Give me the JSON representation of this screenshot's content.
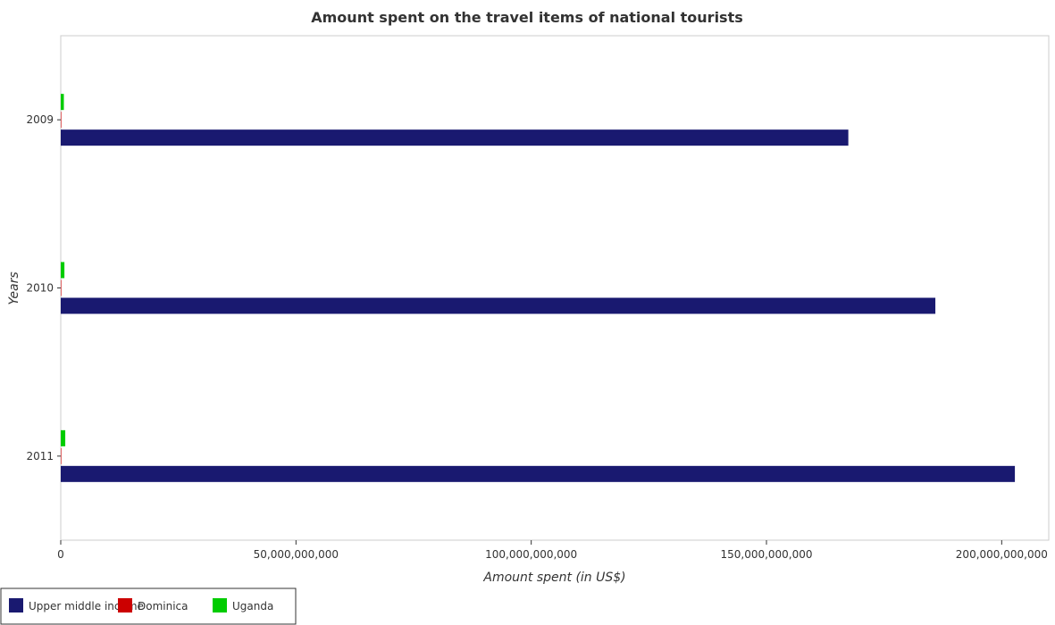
{
  "chart_data": {
    "type": "bar",
    "orientation": "horizontal",
    "title": "Amount spent on the travel items of national tourists",
    "xlabel": "Amount spent (in US$)",
    "ylabel": "Years",
    "categories": [
      "2009",
      "2010",
      "2011"
    ],
    "series": [
      {
        "name": "Upper middle income",
        "color": "#191970",
        "values": [
          167400000000,
          185900000000,
          202800000000
        ]
      },
      {
        "name": "Dominica",
        "color": "#cc0000",
        "values": [
          70000000,
          80000000,
          100000000
        ]
      },
      {
        "name": "Uganda",
        "color": "#00cc00",
        "values": [
          660000000,
          780000000,
          960000000
        ]
      }
    ],
    "xlim": [
      0,
      210000000000
    ],
    "xticks": [
      0,
      50000000000,
      100000000000,
      150000000000,
      200000000000
    ],
    "xtick_labels": [
      "0",
      "50,000,000,000",
      "100,000,000,000",
      "150,000,000,000",
      "200,000,000,000"
    ],
    "grid": false,
    "legend_position": "bottom-left"
  }
}
